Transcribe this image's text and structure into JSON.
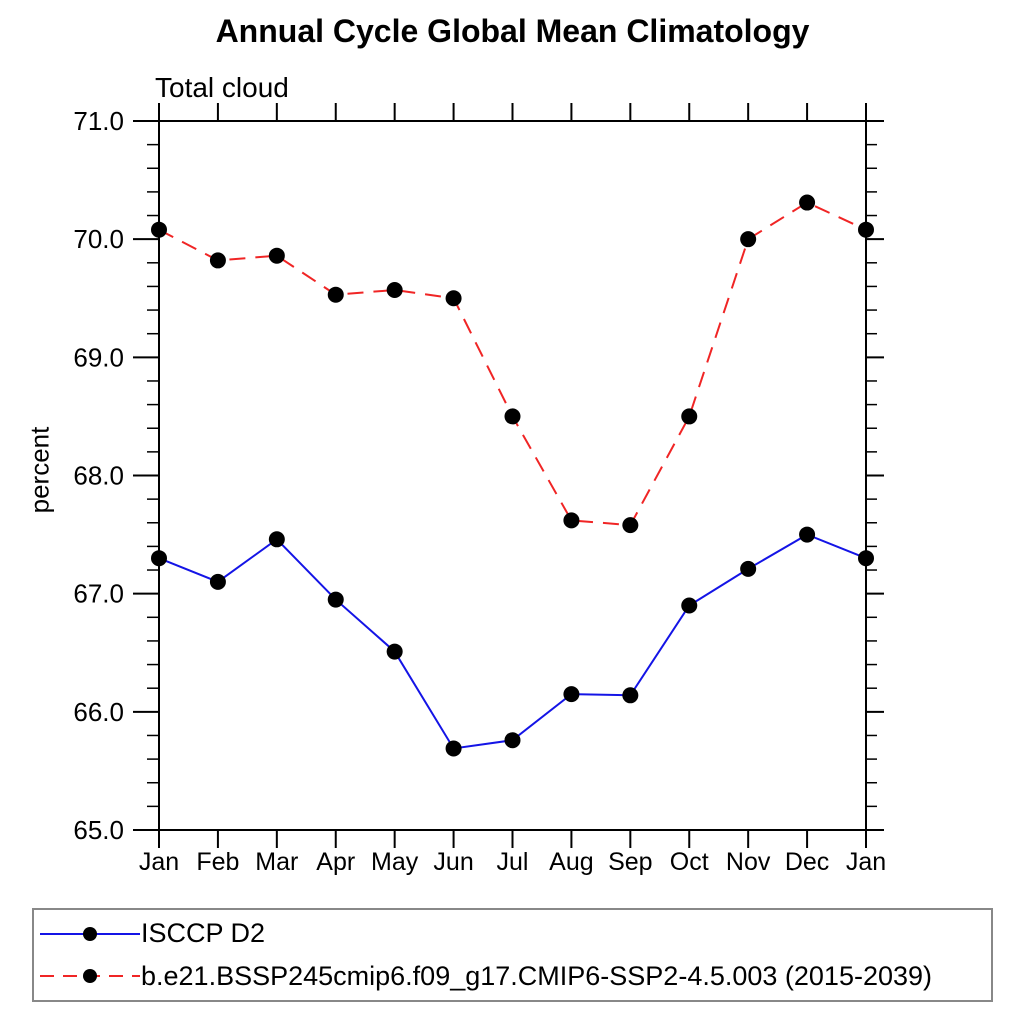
{
  "page": {
    "background": "#ffffff",
    "axis_color": "#000000",
    "legend_border_color": "#888888"
  },
  "chart_data": {
    "type": "line",
    "title": "Annual Cycle Global Mean Climatology",
    "subtitle": "Total cloud",
    "ylabel": "percent",
    "xlabel": "",
    "x_categories": [
      "Jan",
      "Feb",
      "Mar",
      "Apr",
      "May",
      "Jun",
      "Jul",
      "Aug",
      "Sep",
      "Oct",
      "Nov",
      "Dec",
      "Jan"
    ],
    "ylim": [
      65.0,
      71.0
    ],
    "y_major_tick_labels": [
      "65.0",
      "66.0",
      "67.0",
      "68.0",
      "69.0",
      "70.0",
      "71.0"
    ],
    "y_minor_step": 0.2,
    "grid": "off",
    "legend_position": "bottom-left-boxed",
    "marker": "filled-circle",
    "marker_color": "#000000",
    "series": [
      {
        "name": "ISCCP D2",
        "color": "#1414e6",
        "line_style": "solid",
        "values": [
          67.3,
          67.1,
          67.46,
          66.95,
          66.51,
          65.69,
          65.76,
          66.15,
          66.14,
          66.9,
          67.21,
          67.5,
          67.3
        ]
      },
      {
        "name": "b.e21.BSSP245cmip6.f09_g17.CMIP6-SSP2-4.5.003 (2015-2039)",
        "color": "#f02525",
        "line_style": "dashed",
        "values": [
          70.08,
          69.82,
          69.86,
          69.53,
          69.57,
          69.5,
          68.5,
          67.62,
          67.58,
          68.5,
          70.0,
          70.31,
          70.08
        ]
      }
    ]
  }
}
